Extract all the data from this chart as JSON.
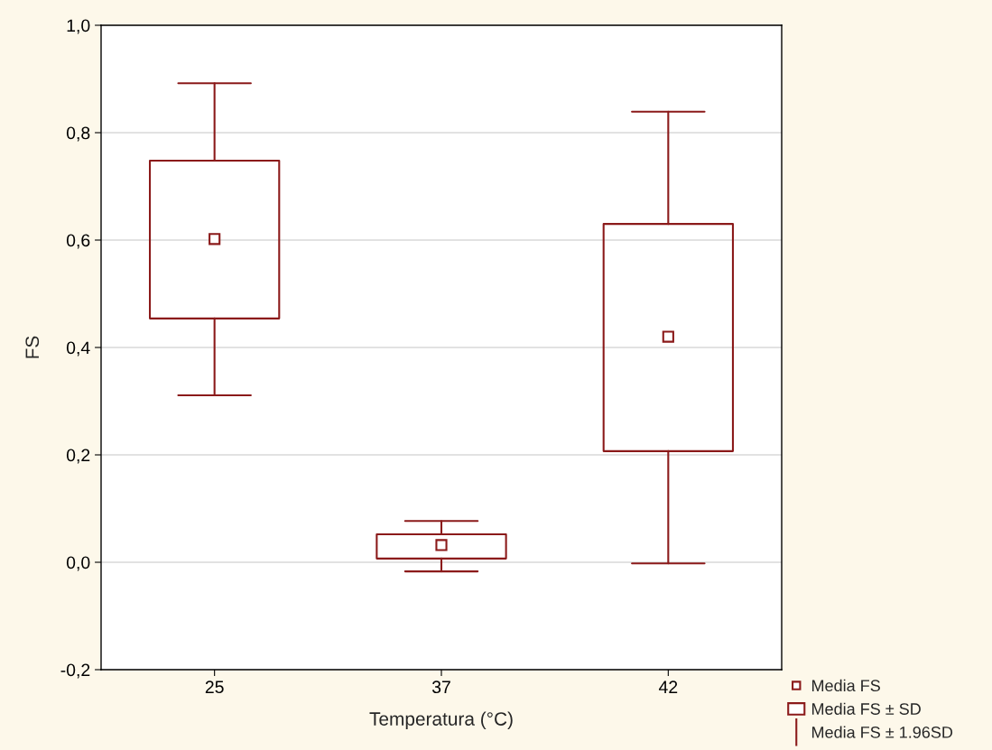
{
  "chart_data": {
    "type": "box",
    "xlabel": "Temperatura (°C)",
    "ylabel": "FS",
    "categories": [
      "25",
      "37",
      "42"
    ],
    "ylim": [
      -0.2,
      1.0
    ],
    "yticks": [
      {
        "value": -0.2,
        "label": "-0,2"
      },
      {
        "value": 0.0,
        "label": "0,0"
      },
      {
        "value": 0.2,
        "label": "0,2"
      },
      {
        "value": 0.4,
        "label": "0,4"
      },
      {
        "value": 0.6,
        "label": "0,6"
      },
      {
        "value": 0.8,
        "label": "0,8"
      },
      {
        "value": 1.0,
        "label": "1,0"
      }
    ],
    "grid": "y",
    "legend": "bottom right",
    "series": [
      {
        "name": "Media FS",
        "type": "scatter",
        "color": "#8b1a1a",
        "marker": "square",
        "x": [
          "25",
          "37",
          "42"
        ],
        "values": [
          0.602,
          0.032,
          0.42
        ]
      },
      {
        "name": "Media FS ± SD",
        "color": "#8b1a1a",
        "boxes": [
          {
            "low": 0.311,
            "q1": 0.454,
            "q3": 0.748,
            "high": 0.892
          },
          {
            "low": -0.017,
            "q1": 0.007,
            "q3": 0.052,
            "high": 0.077
          },
          {
            "low": -0.002,
            "q1": 0.207,
            "q3": 0.63,
            "high": 0.839
          }
        ]
      }
    ],
    "annotations": [
      "Media FS ± 1.96SD"
    ]
  }
}
